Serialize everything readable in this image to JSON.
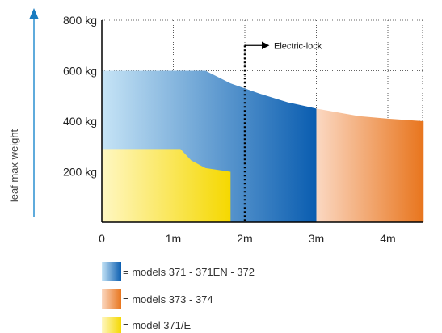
{
  "chart_data": {
    "type": "area",
    "title": "",
    "ylabel": "leaf max weight",
    "xlabel": "",
    "x_ticks": [
      "0",
      "1m",
      "2m",
      "3m",
      "4m"
    ],
    "x_tick_values": [
      0,
      1,
      2,
      3,
      4
    ],
    "y_ticks": [
      "200 kg",
      "400 kg",
      "600 kg",
      "800 kg"
    ],
    "y_tick_values": [
      200,
      400,
      600,
      800
    ],
    "xlim": [
      0,
      4.5
    ],
    "ylim": [
      0,
      800
    ],
    "grid": "dotted",
    "series": [
      {
        "name": "models 371 - 371EN - 372",
        "color_light": "#c6e4f6",
        "color_dark": "#0a5db0",
        "x": [
          0,
          1.45,
          1.8,
          2.2,
          2.6,
          3.0
        ],
        "y": [
          600,
          600,
          550,
          510,
          475,
          450
        ]
      },
      {
        "name": "models 373 - 374",
        "color_light": "#fbd8c2",
        "color_dark": "#e8751d",
        "x": [
          3.0,
          3.3,
          3.6,
          4.0,
          4.5
        ],
        "y": [
          450,
          435,
          420,
          410,
          400
        ]
      },
      {
        "name": "model 371/E",
        "color_light": "#fff7c2",
        "color_dark": "#f5d800",
        "x": [
          0,
          1.1,
          1.25,
          1.45,
          1.8
        ],
        "y": [
          290,
          290,
          245,
          215,
          200
        ]
      }
    ],
    "annotations": [
      {
        "label": "Electric-lock",
        "x": 2.0,
        "y": 700
      }
    ]
  },
  "legend": [
    {
      "label": "= models 371 - 371EN - 372"
    },
    {
      "label": "= models 373 - 374"
    },
    {
      "label": "= model 371/E"
    }
  ]
}
